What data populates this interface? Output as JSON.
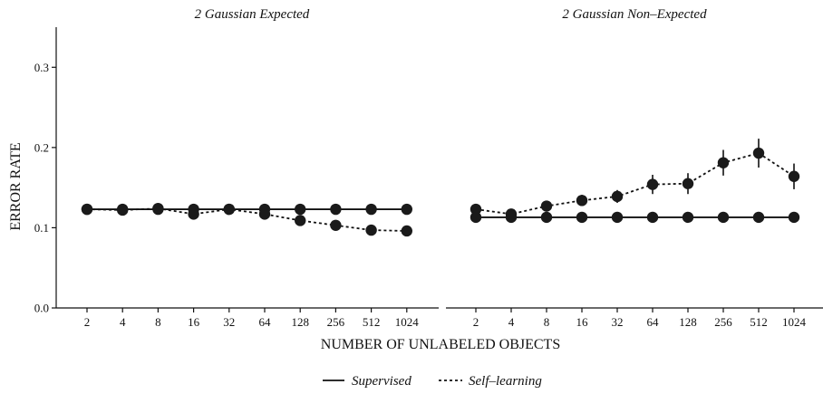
{
  "chart_data": {
    "type": "line",
    "ylabel": "ERROR RATE",
    "xlabel": "NUMBER OF UNLABELED OBJECTS",
    "ylim": [
      0,
      0.35
    ],
    "yticks": [
      "0.0",
      "0.1",
      "0.2",
      "0.3"
    ],
    "x_scale": "log2",
    "categories": [
      "2",
      "4",
      "8",
      "16",
      "32",
      "64",
      "128",
      "256",
      "512",
      "1024"
    ],
    "legend": {
      "placement": "bottom-center",
      "entries": [
        {
          "label": "Supervised",
          "style": "solid"
        },
        {
          "label": "Self–learning",
          "style": "dashed"
        }
      ]
    },
    "panels": [
      {
        "title": "2 Gaussian Expected",
        "series": [
          {
            "name": "Supervised",
            "style": "solid",
            "values": [
              0.123,
              0.123,
              0.123,
              0.123,
              0.123,
              0.123,
              0.123,
              0.123,
              0.123,
              0.123
            ],
            "errors": [
              0,
              0,
              0,
              0,
              0,
              0,
              0,
              0,
              0,
              0
            ]
          },
          {
            "name": "Self–learning",
            "style": "dashed",
            "values": [
              0.123,
              0.122,
              0.124,
              0.117,
              0.123,
              0.117,
              0.109,
              0.103,
              0.097,
              0.096
            ],
            "errors": [
              0,
              0,
              0,
              0,
              0,
              0,
              0,
              0,
              0,
              0
            ]
          }
        ]
      },
      {
        "title": "2 Gaussian Non–Expected",
        "series": [
          {
            "name": "Supervised",
            "style": "solid",
            "values": [
              0.113,
              0.113,
              0.113,
              0.113,
              0.113,
              0.113,
              0.113,
              0.113,
              0.113,
              0.113
            ],
            "errors": [
              0,
              0,
              0,
              0,
              0,
              0,
              0,
              0,
              0,
              0
            ]
          },
          {
            "name": "Self–learning",
            "style": "dashed",
            "values": [
              0.123,
              0.117,
              0.127,
              0.134,
              0.139,
              0.154,
              0.155,
              0.181,
              0.193,
              0.164
            ],
            "errors": [
              0,
              0.003,
              0.006,
              0.007,
              0.008,
              0.012,
              0.013,
              0.016,
              0.018,
              0.016
            ]
          }
        ]
      }
    ],
    "colors": {
      "line": "#111111",
      "marker": "#1a1a1a"
    }
  }
}
